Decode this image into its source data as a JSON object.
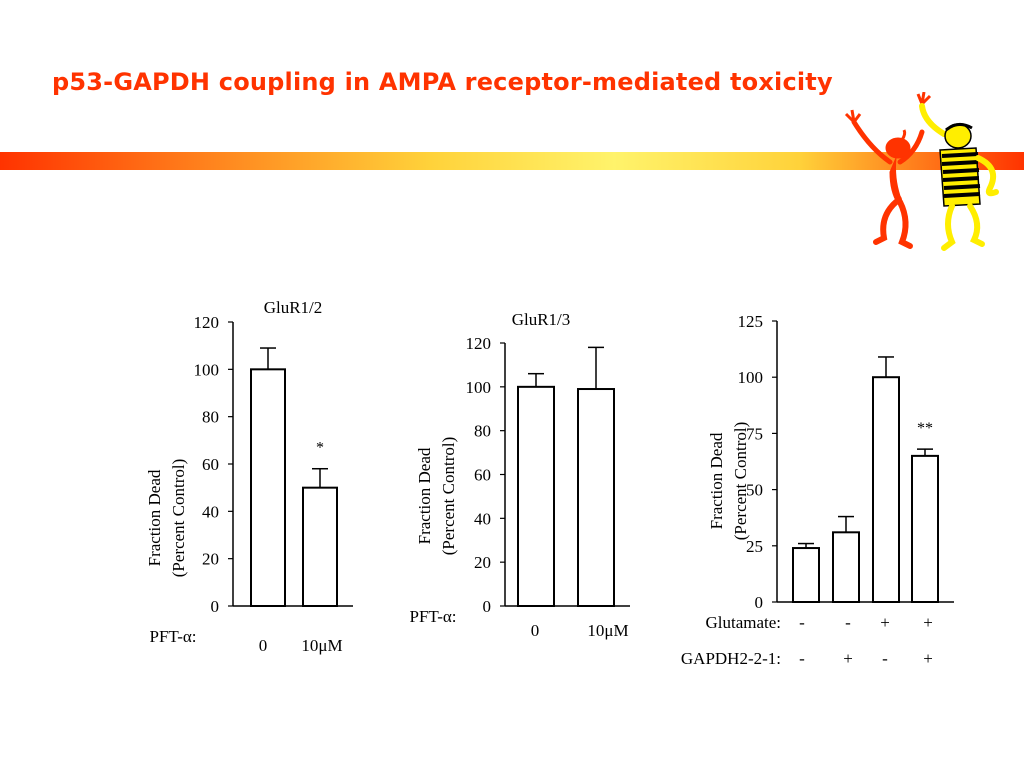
{
  "slide": {
    "title": "p53-GAPDH coupling in AMPA receptor-mediated toxicity",
    "colors": {
      "title": "#ff3300",
      "band_start": "#ff3300",
      "band_mid": "#fff36b",
      "mascot_red": "#ff3300",
      "mascot_yellow": "#ffee00"
    },
    "decoration": "two-dancing-figures-icon"
  },
  "chart_data": [
    {
      "type": "bar",
      "title": "GluR1/2",
      "ylabel": "Fraction Dead\n(Percent Control)",
      "ylim": [
        0,
        120
      ],
      "yticks": [
        0,
        20,
        40,
        60,
        80,
        100,
        120
      ],
      "group_label": "PFT-α:",
      "categories": [
        "0",
        "10μM"
      ],
      "values": [
        100,
        50
      ],
      "errors": [
        9,
        8
      ],
      "annotations": [
        "",
        "*"
      ],
      "grid": false
    },
    {
      "type": "bar",
      "title": "GluR1/3",
      "ylabel": "Fraction Dead\n(Percent Control)",
      "ylim": [
        0,
        120
      ],
      "yticks": [
        0,
        20,
        40,
        60,
        80,
        100,
        120
      ],
      "group_label": "PFT-α:",
      "categories": [
        "0",
        "10μM"
      ],
      "values": [
        100,
        99
      ],
      "errors": [
        6,
        19
      ],
      "annotations": [
        "",
        ""
      ],
      "grid": false
    },
    {
      "type": "bar",
      "title": "",
      "ylabel": "Fraction Dead\n(Percent Control)",
      "ylim": [
        0,
        125
      ],
      "yticks": [
        0,
        25,
        50,
        75,
        100,
        125
      ],
      "row_labels": [
        "Glutamate:",
        "GAPDH2-2-1:"
      ],
      "rows": [
        [
          "-",
          "-",
          "+",
          "+"
        ],
        [
          "-",
          "+",
          "-",
          "+"
        ]
      ],
      "values": [
        24,
        31,
        100,
        65
      ],
      "errors": [
        2,
        7,
        9,
        3
      ],
      "annotations": [
        "",
        "",
        "",
        "**"
      ],
      "grid": false
    }
  ]
}
